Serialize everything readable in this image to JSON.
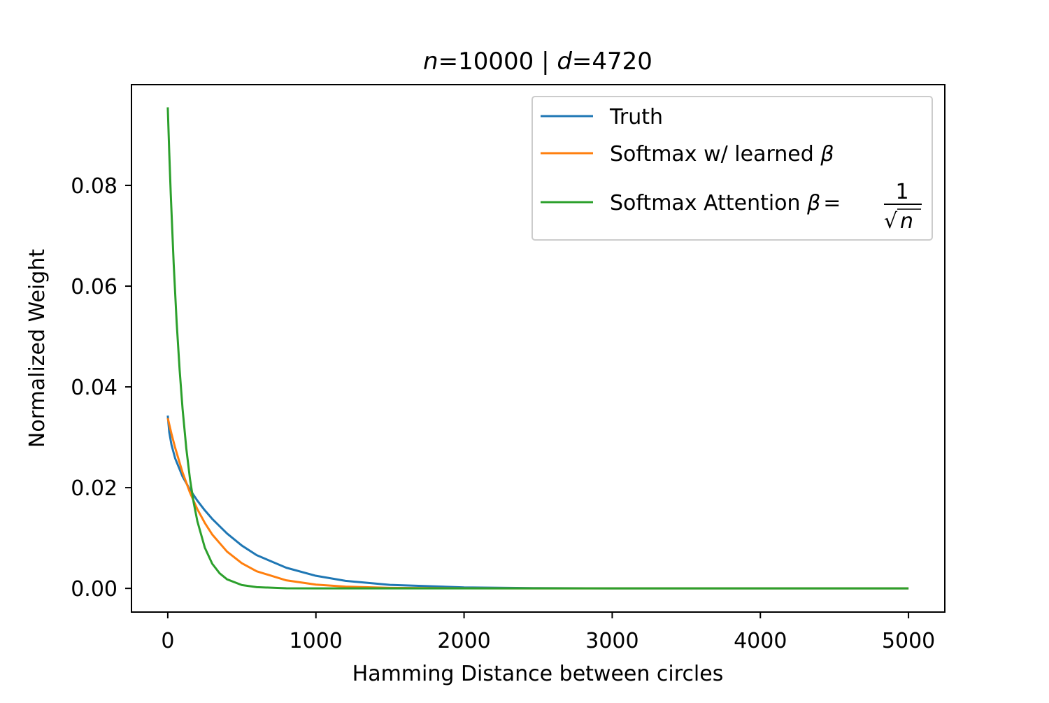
{
  "chart_data": {
    "type": "line",
    "title": {
      "n_symbol": "n",
      "n_value": "=10000 | ",
      "d_symbol": "d",
      "d_value": "=4720"
    },
    "xlabel": "Hamming Distance between circles",
    "ylabel": "Normalized Weight",
    "xlim": [
      -245,
      5245
    ],
    "ylim": [
      -0.0047,
      0.1
    ],
    "xticks": [
      0,
      1000,
      2000,
      3000,
      4000,
      5000
    ],
    "xtick_labels": [
      "0",
      "1000",
      "2000",
      "3000",
      "4000",
      "5000"
    ],
    "yticks": [
      0.0,
      0.02,
      0.04,
      0.06,
      0.08
    ],
    "ytick_labels": [
      "0.00",
      "0.02",
      "0.04",
      "0.06",
      "0.08"
    ],
    "grid": false,
    "legend_position": "top-right",
    "legend_labels": {
      "truth": "Truth",
      "learned_text": "Softmax w/ learned ",
      "beta": "β",
      "attention_text": "Softmax Attention ",
      "attention_eq": "=",
      "frac_numerator": "1",
      "sqrt_sign": "√",
      "frac_n": "n"
    },
    "series": [
      {
        "name": "Truth",
        "color": "#1f77b4",
        "x": [
          0,
          10,
          25,
          50,
          100,
          150,
          200,
          250,
          300,
          400,
          500,
          600,
          800,
          1000,
          1200,
          1500,
          2000,
          2500,
          3000,
          4000,
          5000
        ],
        "y": [
          0.0343,
          0.031,
          0.0285,
          0.0258,
          0.0222,
          0.0196,
          0.0174,
          0.0155,
          0.0138,
          0.0109,
          0.0085,
          0.0066,
          0.0041,
          0.0025,
          0.0015,
          0.0007,
          0.0002,
          5e-05,
          1e-05,
          0.0,
          0.0
        ]
      },
      {
        "name": "Softmax w/ learned β",
        "color": "#ff7f0e",
        "x": [
          0,
          25,
          50,
          100,
          150,
          200,
          250,
          300,
          400,
          500,
          600,
          800,
          1000,
          1200,
          1500,
          2000,
          2500,
          3000,
          4000,
          5000
        ],
        "y": [
          0.0338,
          0.0307,
          0.0279,
          0.023,
          0.019,
          0.0157,
          0.013,
          0.0107,
          0.0073,
          0.005,
          0.0034,
          0.0016,
          0.00075,
          0.00035,
          0.00011,
          2e-05,
          0.0,
          0.0,
          0.0,
          0.0
        ]
      },
      {
        "name": "Softmax Attention β = 1/√n",
        "color": "#2ca02c",
        "x": [
          0,
          10,
          20,
          40,
          60,
          80,
          100,
          125,
          150,
          175,
          200,
          250,
          300,
          350,
          400,
          500,
          600,
          800,
          1000,
          1500,
          2000,
          3000,
          4000,
          5000
        ],
        "y": [
          0.0955,
          0.0865,
          0.0784,
          0.0644,
          0.0528,
          0.0434,
          0.0356,
          0.0278,
          0.0217,
          0.017,
          0.0133,
          0.0081,
          0.0049,
          0.003,
          0.0018,
          0.00066,
          0.00024,
          3e-05,
          0.0,
          0.0,
          0.0,
          0.0,
          0.0,
          0.0
        ]
      }
    ]
  }
}
